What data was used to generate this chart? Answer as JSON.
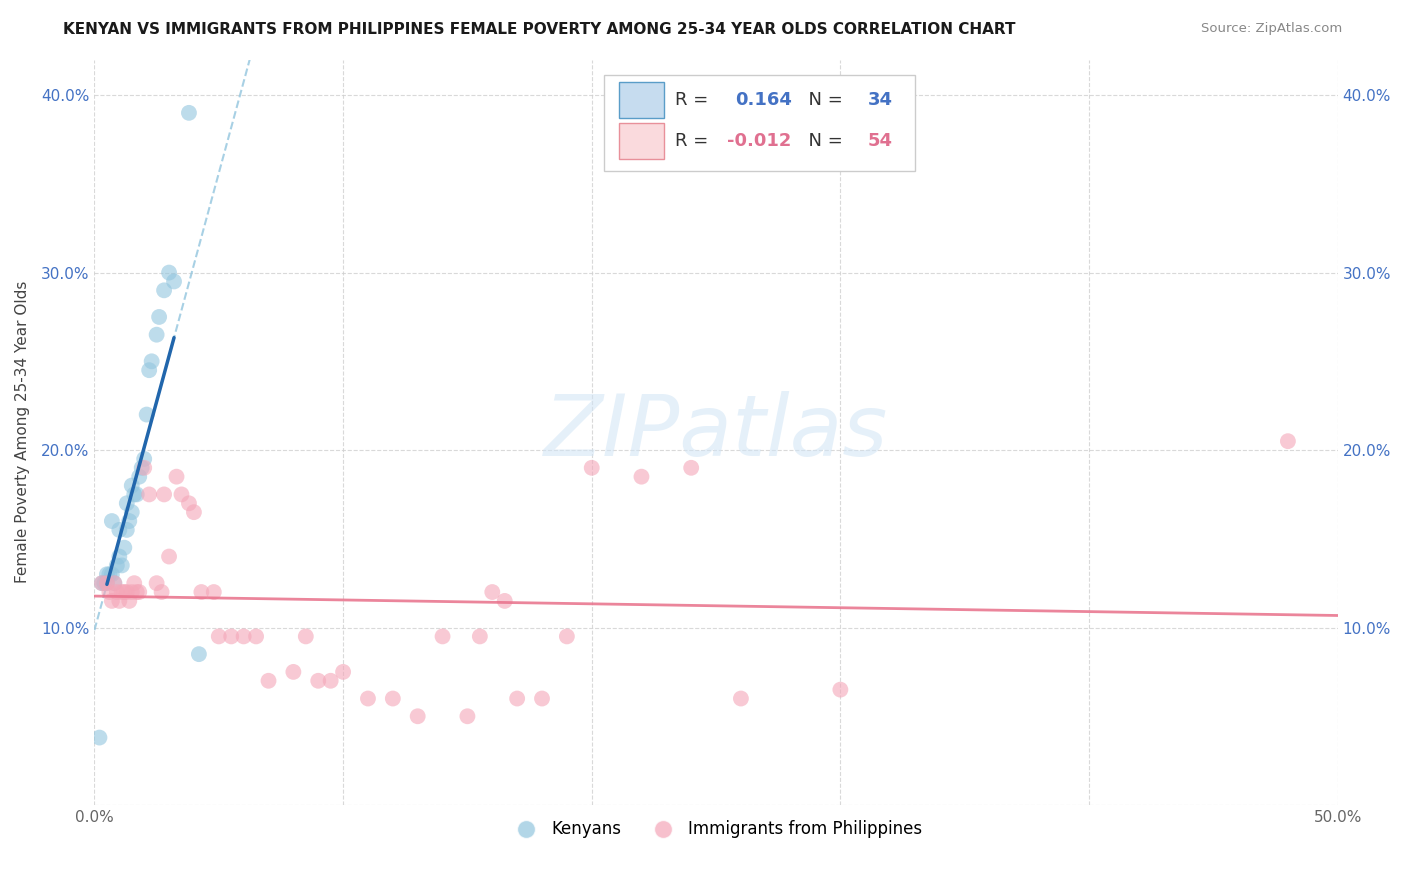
{
  "title": "KENYAN VS IMMIGRANTS FROM PHILIPPINES FEMALE POVERTY AMONG 25-34 YEAR OLDS CORRELATION CHART",
  "source": "Source: ZipAtlas.com",
  "ylabel": "Female Poverty Among 25-34 Year Olds",
  "xlim": [
    0,
    0.5
  ],
  "ylim": [
    0,
    0.42
  ],
  "legend_r_blue": "0.164",
  "legend_n_blue": "34",
  "legend_r_pink": "-0.012",
  "legend_n_pink": "54",
  "blue_scatter_color": "#92c5de",
  "blue_line_color": "#2166ac",
  "blue_dash_color": "#92c5de",
  "pink_scatter_color": "#f4a6b8",
  "pink_line_color": "#e8708a",
  "blue_scatter_x": [
    0.002,
    0.003,
    0.004,
    0.005,
    0.005,
    0.006,
    0.007,
    0.007,
    0.008,
    0.009,
    0.01,
    0.01,
    0.011,
    0.012,
    0.013,
    0.013,
    0.014,
    0.015,
    0.015,
    0.016,
    0.017,
    0.018,
    0.019,
    0.02,
    0.021,
    0.022,
    0.023,
    0.025,
    0.026,
    0.028,
    0.03,
    0.032,
    0.038,
    0.042
  ],
  "blue_scatter_y": [
    0.038,
    0.125,
    0.125,
    0.125,
    0.13,
    0.13,
    0.13,
    0.16,
    0.125,
    0.135,
    0.14,
    0.155,
    0.135,
    0.145,
    0.155,
    0.17,
    0.16,
    0.165,
    0.18,
    0.175,
    0.175,
    0.185,
    0.19,
    0.195,
    0.22,
    0.245,
    0.25,
    0.265,
    0.275,
    0.29,
    0.3,
    0.295,
    0.39,
    0.085
  ],
  "pink_scatter_x": [
    0.003,
    0.005,
    0.006,
    0.007,
    0.008,
    0.009,
    0.01,
    0.011,
    0.012,
    0.013,
    0.014,
    0.015,
    0.016,
    0.017,
    0.018,
    0.02,
    0.022,
    0.025,
    0.027,
    0.028,
    0.03,
    0.033,
    0.035,
    0.038,
    0.04,
    0.043,
    0.048,
    0.05,
    0.055,
    0.06,
    0.065,
    0.07,
    0.08,
    0.085,
    0.09,
    0.095,
    0.1,
    0.11,
    0.12,
    0.13,
    0.14,
    0.15,
    0.155,
    0.16,
    0.165,
    0.17,
    0.18,
    0.19,
    0.2,
    0.22,
    0.24,
    0.26,
    0.3,
    0.48
  ],
  "pink_scatter_y": [
    0.125,
    0.125,
    0.12,
    0.115,
    0.125,
    0.12,
    0.115,
    0.12,
    0.12,
    0.12,
    0.115,
    0.12,
    0.125,
    0.12,
    0.12,
    0.19,
    0.175,
    0.125,
    0.12,
    0.175,
    0.14,
    0.185,
    0.175,
    0.17,
    0.165,
    0.12,
    0.12,
    0.095,
    0.095,
    0.095,
    0.095,
    0.07,
    0.075,
    0.095,
    0.07,
    0.07,
    0.075,
    0.06,
    0.06,
    0.05,
    0.095,
    0.05,
    0.095,
    0.12,
    0.115,
    0.06,
    0.06,
    0.095,
    0.19,
    0.185,
    0.19,
    0.06,
    0.065,
    0.205
  ],
  "blue_line_x_start": 0.005,
  "blue_line_x_end": 0.032,
  "watermark_text": "ZIPatlas",
  "watermark_color": "#d0e4f5",
  "bg_color": "#ffffff",
  "grid_color": "#d0d0d0",
  "tick_color_y": "#4472c4",
  "tick_color_x": "#666666",
  "title_fontsize": 11,
  "axis_fontsize": 11,
  "legend_fontsize": 13
}
